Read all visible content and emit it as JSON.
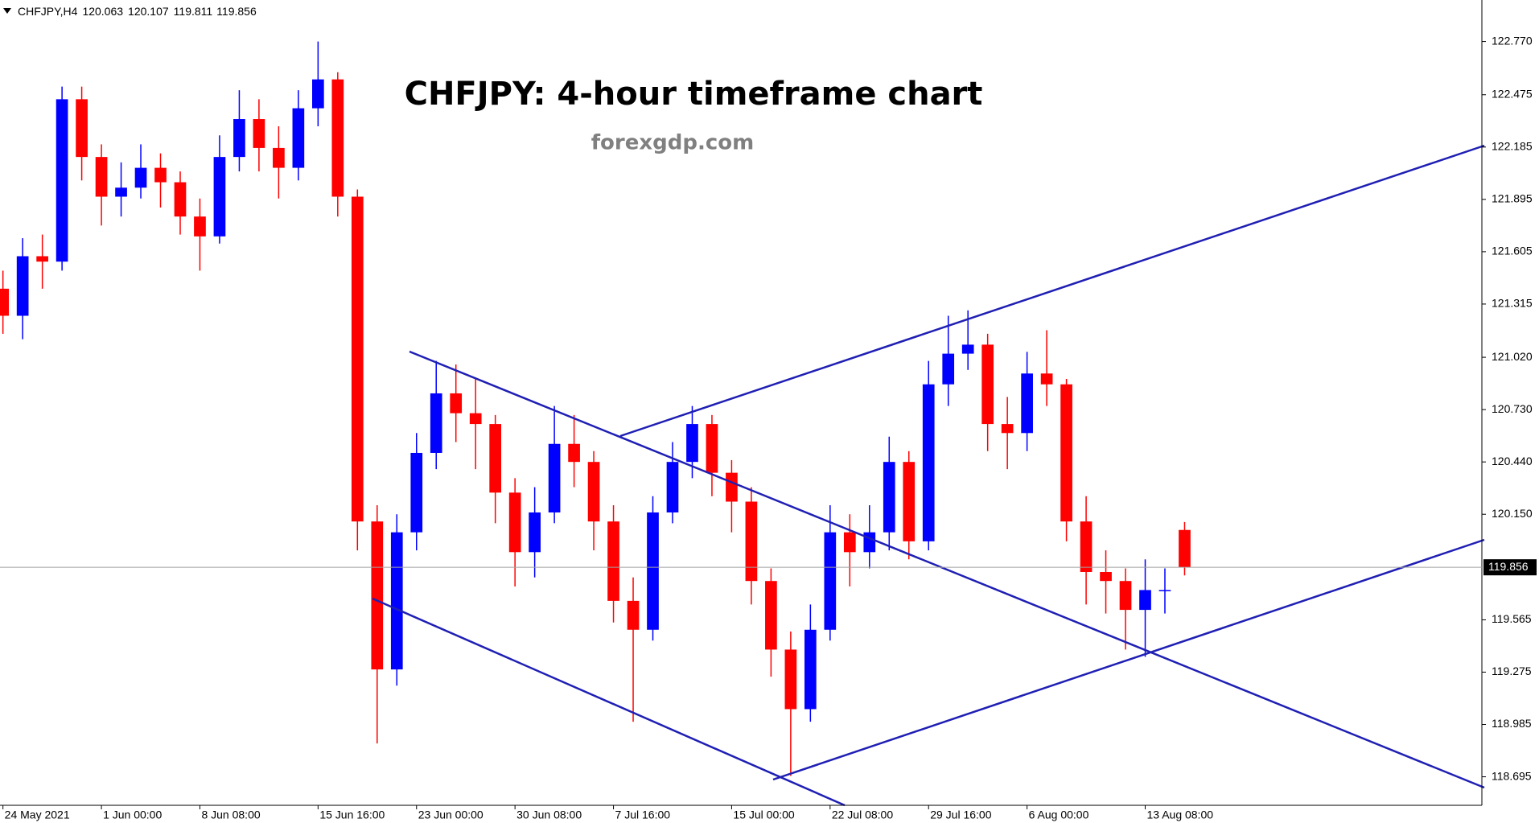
{
  "chart_data": {
    "type": "candlestick",
    "symbol": "CHFJPY,H4",
    "title": "CHFJPY: 4-hour timeframe chart",
    "subtitle": "forexgdp.com",
    "up_color": "#0000ff",
    "down_color": "#ff0000",
    "trendline_color": "#1f1fb4",
    "grid": false,
    "categories": [
      "24 May 2021",
      null,
      null,
      null,
      null,
      "1 Jun 00:00",
      null,
      null,
      null,
      null,
      "8 Jun 08:00",
      null,
      null,
      null,
      null,
      null,
      "15 Jun 16:00",
      null,
      null,
      null,
      null,
      "23 Jun 00:00",
      null,
      null,
      null,
      null,
      "30 Jun 08:00",
      null,
      null,
      null,
      null,
      "7 Jul 16:00",
      null,
      null,
      null,
      null,
      null,
      "15 Jul 00:00",
      null,
      null,
      null,
      null,
      "22 Jul 08:00",
      null,
      null,
      null,
      null,
      "29 Jul 16:00",
      null,
      null,
      null,
      null,
      "6 Aug 00:00",
      null,
      null,
      null,
      null,
      null,
      "13 Aug 08:00",
      null,
      null
    ],
    "open": [
      121.4,
      121.25,
      121.58,
      121.55,
      122.45,
      122.13,
      121.91,
      121.96,
      122.07,
      121.99,
      121.8,
      121.69,
      122.13,
      122.34,
      122.18,
      122.07,
      122.4,
      122.56,
      121.91,
      120.11,
      119.29,
      120.05,
      120.49,
      120.82,
      120.71,
      120.65,
      120.27,
      119.94,
      120.16,
      120.54,
      120.44,
      120.11,
      119.67,
      119.51,
      120.16,
      120.44,
      120.65,
      120.38,
      120.22,
      119.78,
      119.4,
      119.07,
      119.51,
      120.05,
      119.94,
      120.05,
      120.44,
      120.0,
      120.87,
      121.04,
      121.09,
      120.65,
      120.6,
      120.93,
      120.87,
      120.11,
      119.83,
      119.78,
      119.62,
      119.73,
      120.063
    ],
    "high": [
      121.5,
      121.68,
      121.7,
      122.52,
      122.52,
      122.2,
      122.1,
      122.2,
      122.15,
      122.05,
      121.9,
      122.25,
      122.5,
      122.45,
      122.3,
      122.5,
      122.77,
      122.6,
      121.95,
      120.2,
      120.15,
      120.6,
      121.0,
      120.98,
      120.9,
      120.7,
      120.35,
      120.3,
      120.75,
      120.7,
      120.5,
      120.2,
      119.8,
      120.25,
      120.55,
      120.75,
      120.7,
      120.45,
      120.3,
      119.85,
      119.5,
      119.65,
      120.2,
      120.15,
      120.2,
      120.58,
      120.5,
      121.0,
      121.25,
      121.28,
      121.15,
      120.8,
      121.05,
      121.17,
      120.9,
      120.25,
      119.95,
      119.85,
      119.9,
      119.85,
      120.107
    ],
    "low": [
      121.15,
      121.12,
      121.4,
      121.5,
      122.0,
      121.75,
      121.8,
      121.9,
      121.85,
      121.7,
      121.5,
      121.65,
      122.05,
      122.05,
      121.9,
      122.0,
      122.3,
      121.8,
      119.95,
      118.88,
      119.2,
      119.95,
      120.4,
      120.55,
      120.4,
      120.1,
      119.75,
      119.8,
      120.1,
      120.3,
      119.95,
      119.55,
      119.0,
      119.45,
      120.1,
      120.35,
      120.25,
      120.05,
      119.65,
      119.25,
      118.7,
      119.0,
      119.45,
      119.75,
      119.85,
      119.95,
      119.9,
      119.95,
      120.75,
      120.95,
      120.5,
      120.4,
      120.5,
      120.75,
      120.0,
      119.65,
      119.6,
      119.4,
      119.36,
      119.6,
      119.811
    ],
    "close": [
      121.25,
      121.58,
      121.55,
      122.45,
      122.13,
      121.91,
      121.96,
      122.07,
      121.99,
      121.8,
      121.69,
      122.13,
      122.34,
      122.18,
      122.07,
      122.4,
      122.56,
      121.91,
      120.11,
      119.29,
      120.05,
      120.49,
      120.82,
      120.71,
      120.65,
      120.27,
      119.94,
      120.16,
      120.54,
      120.44,
      120.11,
      119.67,
      119.51,
      120.16,
      120.44,
      120.65,
      120.38,
      120.22,
      119.78,
      119.4,
      119.07,
      119.51,
      120.05,
      119.94,
      120.05,
      120.44,
      120.0,
      120.87,
      121.04,
      121.09,
      120.65,
      120.6,
      120.93,
      120.87,
      120.11,
      119.83,
      119.78,
      119.62,
      119.73,
      119.73,
      119.856
    ],
    "ylim": [
      118.537,
      123.0
    ],
    "yticks": [
      {
        "value": 122.77,
        "label": "122.770"
      },
      122.475,
      122.185,
      121.895,
      121.605,
      121.315,
      {
        "value": 121.02,
        "label": "121.020"
      },
      {
        "value": 120.73,
        "label": "120.730"
      },
      {
        "value": 120.44,
        "label": "120.440"
      },
      {
        "value": 120.15,
        "label": "120.150"
      },
      119.565,
      119.275,
      118.985,
      118.695
    ]
  }
}
